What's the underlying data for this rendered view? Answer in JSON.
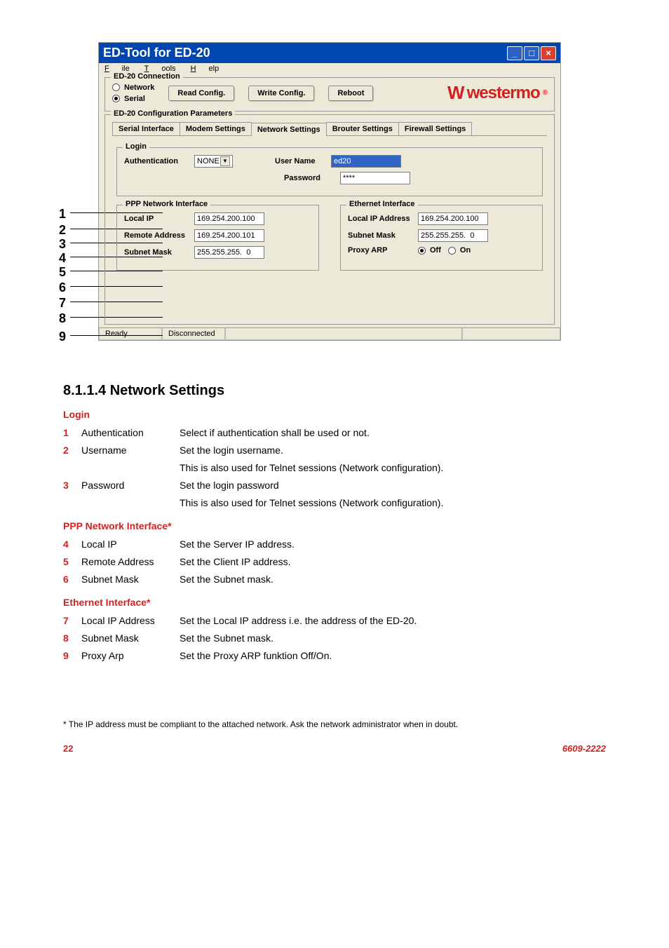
{
  "window": {
    "title": "ED-Tool for ED-20",
    "titlebar_bg": "#0046b0",
    "menu": {
      "file": "File",
      "tools": "Tools",
      "help": "Help"
    },
    "connection": {
      "group_label": "ED-20 Connection",
      "network_label": "Network",
      "serial_label": "Serial",
      "read_btn": "Read Config.",
      "write_btn": "Write Config.",
      "reboot_btn": "Reboot"
    },
    "logo_text": "westermo",
    "params": {
      "group_label": "ED-20 Configuration Parameters",
      "tabs": {
        "serial": "Serial Interface",
        "modem": "Modem Settings",
        "network": "Network Settings",
        "brouter": "Brouter Settings",
        "firewall": "Firewall Settings"
      },
      "login": {
        "label": "Login",
        "auth_label": "Authentication",
        "auth_value": "NONE",
        "user_label": "User Name",
        "user_value": "ed20",
        "pass_label": "Password",
        "pass_value": "****"
      },
      "ppp": {
        "label": "PPP Network Interface",
        "local_ip_label": "Local IP",
        "local_ip_value": "169.254.200.100",
        "remote_label": "Remote Address",
        "remote_value": "169.254.200.101",
        "subnet_label": "Subnet Mask",
        "subnet_value": "255.255.255.  0"
      },
      "eth": {
        "label": "Ethernet Interface",
        "local_ip_label": "Local IP Address",
        "local_ip_value": "169.254.200.100",
        "subnet_label": "Subnet Mask",
        "subnet_value": "255.255.255.  0",
        "proxy_label": "Proxy ARP",
        "off_label": "Off",
        "on_label": "On"
      }
    },
    "status": {
      "ready": "Ready",
      "disconnected": "Disconnected"
    }
  },
  "leaders": [
    "1",
    "2",
    "3",
    "4",
    "5",
    "6",
    "7",
    "8",
    "9"
  ],
  "doc": {
    "heading": "8.1.1.4  Network Settings",
    "login_heading": "Login",
    "rows_login": [
      {
        "n": "1",
        "term": "Authentication",
        "desc": "Select if authentication shall be used or not."
      },
      {
        "n": "2",
        "term": "Username",
        "desc": "Set the login username.",
        "desc2": "This is also used for Telnet sessions (Network configuration)."
      },
      {
        "n": "3",
        "term": "Password",
        "desc": "Set the login password",
        "desc2": "This is also used for Telnet sessions (Network configuration)."
      }
    ],
    "ppp_heading": "PPP Network Interface*",
    "rows_ppp": [
      {
        "n": "4",
        "term": "Local IP",
        "desc": "Set the Server IP address."
      },
      {
        "n": "5",
        "term": "Remote Address",
        "desc": "Set the Client IP address."
      },
      {
        "n": "6",
        "term": "Subnet Mask",
        "desc": "Set the Subnet mask."
      }
    ],
    "eth_heading": "Ethernet Interface*",
    "rows_eth": [
      {
        "n": "7",
        "term": "Local IP Address",
        "desc": "Set the Local IP address i.e. the address of the ED-20."
      },
      {
        "n": "8",
        "term": "Subnet Mask",
        "desc": "Set the Subnet mask."
      },
      {
        "n": "9",
        "term": "Proxy Arp",
        "desc": "Set the Proxy ARP funktion Off/On."
      }
    ],
    "footnote": "* The IP address must be compliant to the attached network. Ask the network administrator when in doubt.",
    "page_num": "22",
    "doc_num": "6609-2222"
  }
}
